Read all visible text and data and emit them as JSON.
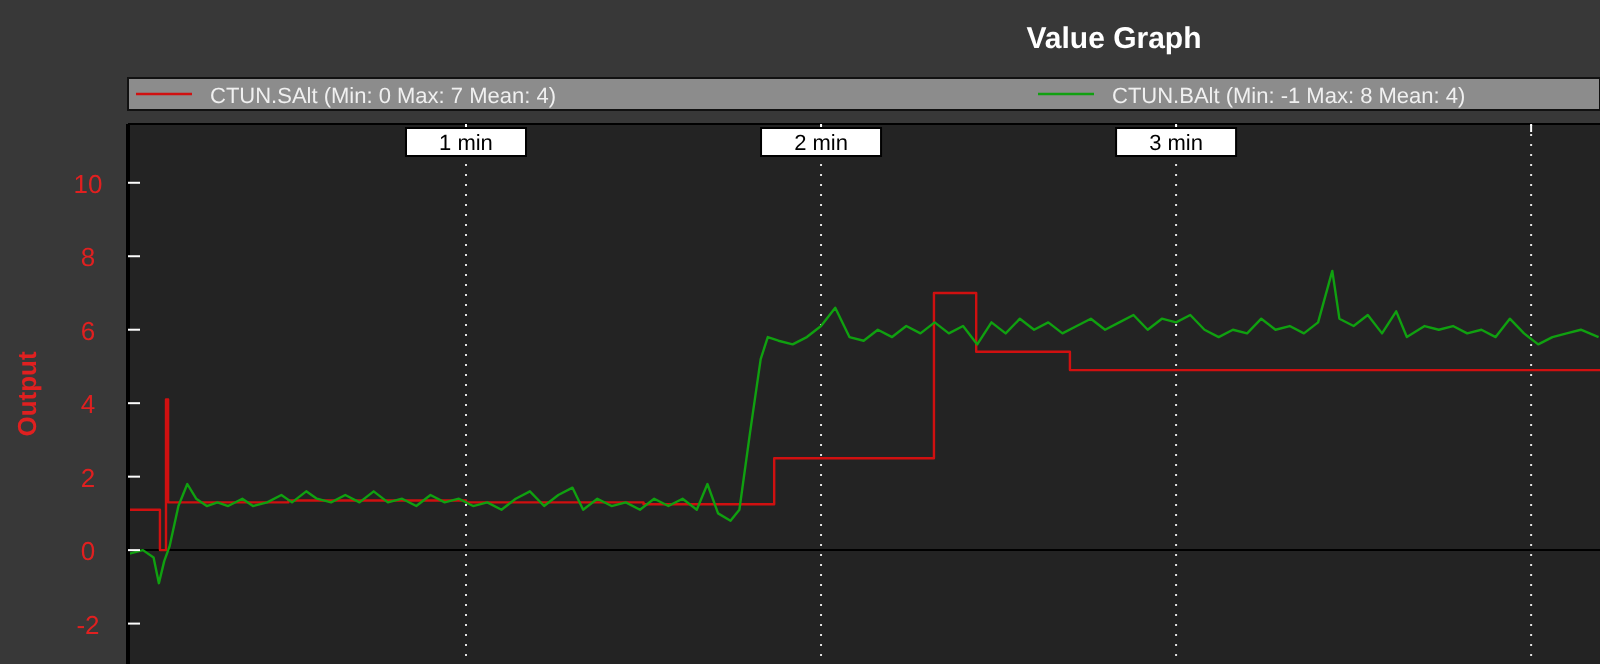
{
  "chart_data": {
    "type": "line",
    "title": "Value Graph",
    "ylabel": "Output",
    "xlim": [
      0.048,
      4.194
    ],
    "ylim": [
      -3.1,
      11.6
    ],
    "xticks": [
      {
        "value": 1,
        "label": "1 min"
      },
      {
        "value": 2,
        "label": "2 min"
      },
      {
        "value": 3,
        "label": "3 min"
      },
      {
        "value": 4,
        "label": null
      }
    ],
    "yticks": [
      -2,
      0,
      2,
      4,
      6,
      8,
      10
    ],
    "grid": "x",
    "legend": "top",
    "line_style": "solid",
    "marker": "none",
    "series": [
      {
        "name": "CTUN.SAlt (Min: 0 Max: 7 Mean: 4)",
        "type": "step",
        "color": "#d01010",
        "x": [
          0.048,
          0.138,
          0.155,
          0.161,
          0.5,
          1.0,
          1.5,
          1.868,
          2.318,
          2.437,
          2.701,
          4.194
        ],
        "values": [
          1.1,
          0,
          4.1,
          1.3,
          1.35,
          1.3,
          1.25,
          2.5,
          7.0,
          5.4,
          4.9,
          4.9
        ]
      },
      {
        "name": "CTUN.BAlt (Min: -1 Max: 8 Mean: 4)",
        "color": "#10a010",
        "x": [
          0.05,
          0.09,
          0.12,
          0.135,
          0.15,
          0.165,
          0.19,
          0.215,
          0.24,
          0.27,
          0.3,
          0.33,
          0.37,
          0.4,
          0.44,
          0.48,
          0.51,
          0.55,
          0.58,
          0.62,
          0.66,
          0.7,
          0.74,
          0.78,
          0.82,
          0.86,
          0.9,
          0.94,
          0.98,
          1.02,
          1.06,
          1.1,
          1.14,
          1.18,
          1.22,
          1.26,
          1.3,
          1.33,
          1.37,
          1.41,
          1.45,
          1.49,
          1.53,
          1.57,
          1.61,
          1.65,
          1.68,
          1.71,
          1.745,
          1.77,
          1.8,
          1.83,
          1.85,
          1.88,
          1.92,
          1.96,
          2.0,
          2.04,
          2.08,
          2.12,
          2.16,
          2.2,
          2.24,
          2.28,
          2.32,
          2.36,
          2.4,
          2.44,
          2.48,
          2.52,
          2.56,
          2.6,
          2.64,
          2.68,
          2.72,
          2.76,
          2.8,
          2.84,
          2.88,
          2.92,
          2.96,
          3.0,
          3.04,
          3.08,
          3.12,
          3.16,
          3.2,
          3.24,
          3.28,
          3.32,
          3.36,
          3.4,
          3.44,
          3.46,
          3.5,
          3.54,
          3.58,
          3.62,
          3.65,
          3.7,
          3.74,
          3.78,
          3.82,
          3.86,
          3.9,
          3.94,
          3.98,
          4.02,
          4.06,
          4.1,
          4.14,
          4.19
        ],
        "values": [
          -0.1,
          0.0,
          -0.2,
          -0.9,
          -0.3,
          0.1,
          1.2,
          1.8,
          1.4,
          1.2,
          1.3,
          1.2,
          1.4,
          1.2,
          1.3,
          1.5,
          1.3,
          1.6,
          1.4,
          1.3,
          1.5,
          1.3,
          1.6,
          1.3,
          1.4,
          1.2,
          1.5,
          1.3,
          1.4,
          1.2,
          1.3,
          1.1,
          1.4,
          1.6,
          1.2,
          1.5,
          1.7,
          1.1,
          1.4,
          1.2,
          1.3,
          1.1,
          1.4,
          1.2,
          1.4,
          1.1,
          1.8,
          1.0,
          0.8,
          1.1,
          3.2,
          5.2,
          5.8,
          5.7,
          5.6,
          5.8,
          6.1,
          6.6,
          5.8,
          5.7,
          6.0,
          5.8,
          6.1,
          5.9,
          6.2,
          5.9,
          6.1,
          5.6,
          6.2,
          5.9,
          6.3,
          6.0,
          6.2,
          5.9,
          6.1,
          6.3,
          6.0,
          6.2,
          6.4,
          6.0,
          6.3,
          6.2,
          6.4,
          6.0,
          5.8,
          6.0,
          5.9,
          6.3,
          6.0,
          6.1,
          5.9,
          6.2,
          7.6,
          6.3,
          6.1,
          6.4,
          5.9,
          6.5,
          5.8,
          6.1,
          6.0,
          6.1,
          5.9,
          6.0,
          5.8,
          6.3,
          5.9,
          5.6,
          5.8,
          5.9,
          6.0,
          5.8
        ]
      }
    ]
  }
}
